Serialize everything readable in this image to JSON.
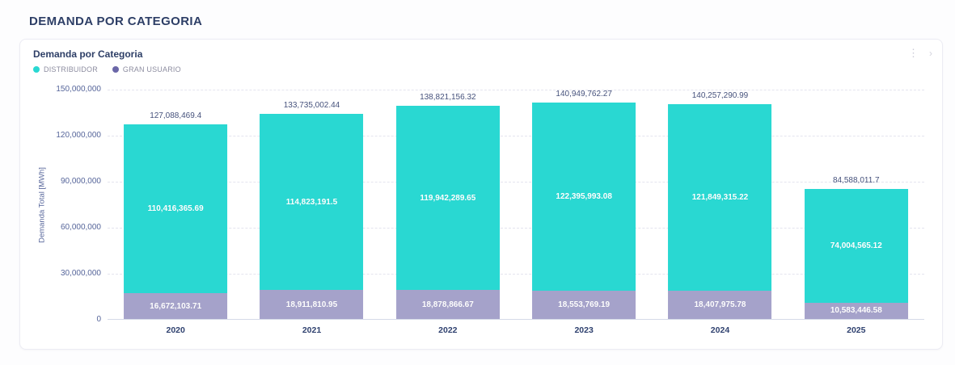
{
  "page": {
    "title": "DEMANDA POR CATEGORIA"
  },
  "card": {
    "title": "Demanda por Categoria",
    "icons": {
      "menu": "kebab-menu",
      "expand": "chevron-right"
    }
  },
  "legend": [
    {
      "label": "DISTRIBUIDOR",
      "dot_color": "#29d8d2"
    },
    {
      "label": "GRAN USUARIO",
      "dot_color": "#6b67a8"
    }
  ],
  "chart_data": {
    "type": "bar",
    "stacked": true,
    "title": "Demanda por Categoria",
    "categories": [
      "2020",
      "2021",
      "2022",
      "2023",
      "2024",
      "2025"
    ],
    "series": [
      {
        "name": "DISTRIBUIDOR",
        "color": "#29d8d2",
        "values": [
          110416365.69,
          114823191.5,
          119942289.65,
          122395993.08,
          121849315.22,
          74004565.12
        ],
        "labels": [
          "110,416,365.69",
          "114,823,191.5",
          "119,942,289.65",
          "122,395,993.08",
          "121,849,315.22",
          "74,004,565.12"
        ]
      },
      {
        "name": "GRAN USUARIO",
        "color": "#a5a2ca",
        "values": [
          16672103.71,
          18911810.95,
          18878866.67,
          18553769.19,
          18407975.78,
          10583446.58
        ],
        "labels": [
          "16,672,103.71",
          "18,911,810.95",
          "18,878,866.67",
          "18,553,769.19",
          "18,407,975.78",
          "10,583,446.58"
        ]
      }
    ],
    "totals": {
      "values": [
        127088469.4,
        133735002.44,
        138821156.32,
        140949762.27,
        140257290.99,
        84588011.7
      ],
      "labels": [
        "127,088,469.4",
        "133,735,002.44",
        "138,821,156.32",
        "140,949,762.27",
        "140,257,290.99",
        "84,588,011.7"
      ]
    },
    "xlabel": "",
    "ylabel": "Demanda Total [MWh]",
    "ylim": [
      0,
      150000000
    ],
    "yticks": {
      "values": [
        150000000,
        120000000,
        90000000,
        60000000,
        30000000,
        0
      ],
      "labels": [
        "150,000,000",
        "120,000,000",
        "90,000,000",
        "60,000,000",
        "30,000,000",
        "0"
      ]
    },
    "grid": "horizontal-dashed",
    "legend_position": "top-left"
  }
}
